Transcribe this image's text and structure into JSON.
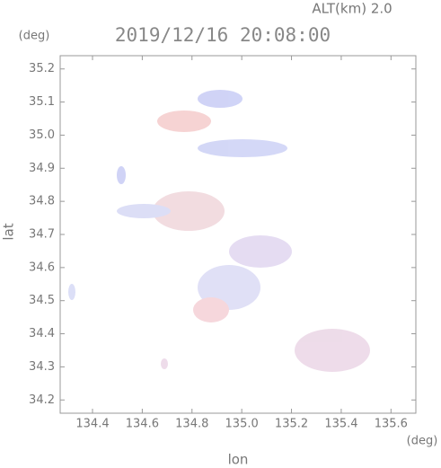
{
  "chart_data": {
    "type": "map",
    "title": "2019/12/16 20:08:00",
    "subtitle": "ALT(km) 2.0",
    "x_label": "lon",
    "x_unit": "(deg)",
    "y_label": "lat",
    "y_unit": "(deg)",
    "xlim": [
      134.27,
      135.7
    ],
    "xticks": [
      134.4,
      134.6,
      134.8,
      {
        "value": 135,
        "label": "135.0"
      },
      135.2,
      135.4,
      135.6
    ],
    "ylim": [
      34.16,
      35.24
    ],
    "yticks": [
      34.2,
      34.3,
      34.4,
      34.5,
      34.6,
      34.7,
      34.8,
      34.9,
      {
        "value": 35,
        "label": "35.0"
      },
      35.1,
      35.2
    ]
  }
}
